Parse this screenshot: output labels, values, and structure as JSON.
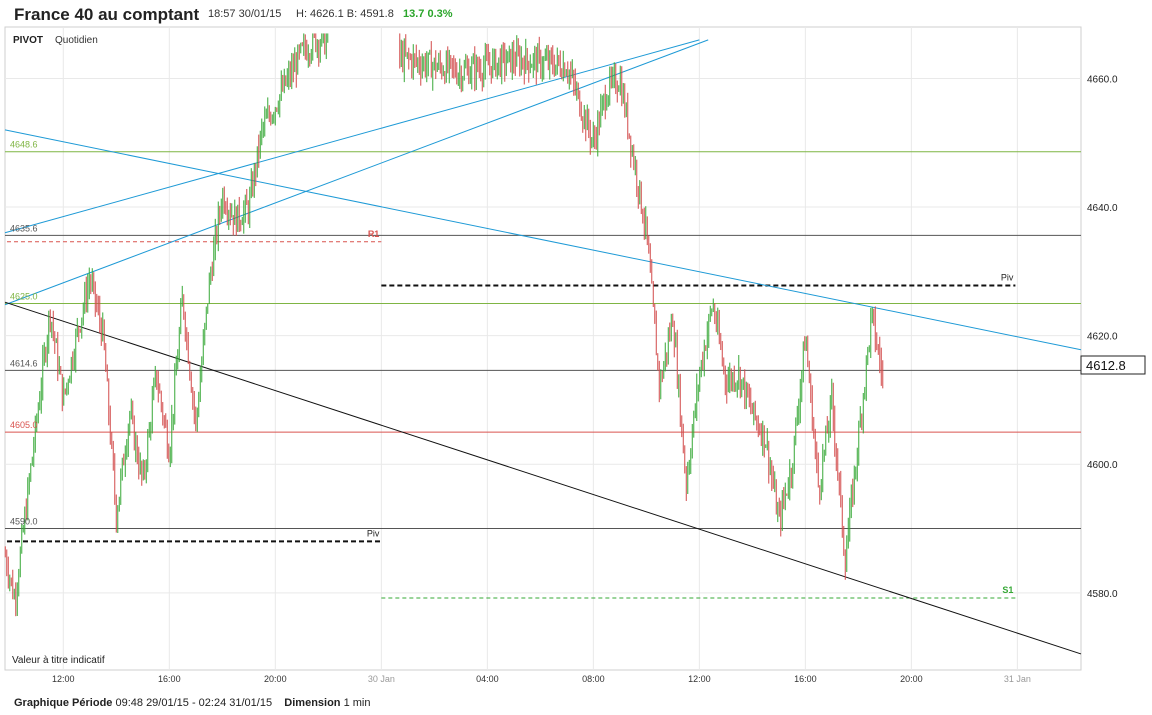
{
  "header": {
    "title": "France 40 au comptant",
    "datetime": "18:57 30/01/15",
    "hb": "H: 4626.1  B: 4591.8",
    "change": "13.7  0.3%"
  },
  "panel": {
    "indicator": "PIVOT",
    "period": "Quotidien",
    "disclaimer": "Valeur à titre indicatif"
  },
  "footer": {
    "period_label": "Graphique Période",
    "period_value": "09:48 29/01/15 - 02:24 31/01/15",
    "dimension_label": "Dimension",
    "dimension_value": "1 min"
  },
  "colors": {
    "up": "#36a836",
    "down": "#d24a4a",
    "trend_blue": "#1e9ad6",
    "green_level": "#7fb543",
    "red_level": "#d9534f",
    "grey_level": "#555555"
  },
  "chart_data": {
    "type": "candlestick",
    "x_tick_labels": [
      "12:00",
      "16:00",
      "20:00",
      "30 Jan",
      "04:00",
      "08:00",
      "12:00",
      "16:00",
      "20:00",
      "31 Jan"
    ],
    "y_tick_labels": [
      "4580.0",
      "4600.0",
      "4620.0",
      "4640.0",
      "4660.0"
    ],
    "ylim": [
      4568,
      4668
    ],
    "last_price": "4612.8",
    "levels": [
      {
        "label": "4648.6",
        "value": 4648.6,
        "color": "green",
        "style": "solid"
      },
      {
        "label": "4635.6",
        "value": 4635.6,
        "color": "grey",
        "style": "solid"
      },
      {
        "label": "4625.0",
        "value": 4625.0,
        "color": "green",
        "style": "solid"
      },
      {
        "label": "4614.6",
        "value": 4614.6,
        "color": "grey",
        "style": "solid"
      },
      {
        "label": "4605.0",
        "value": 4605.0,
        "color": "red",
        "style": "solid"
      },
      {
        "label": "4590.0",
        "value": 4590.0,
        "color": "grey",
        "style": "solid"
      }
    ],
    "pivot_labels": [
      {
        "label": "R1",
        "value": 4634.6,
        "from": "29/01 09:48",
        "to": "30/01 00:00",
        "color": "red"
      },
      {
        "label": "Piv",
        "value": 4588.0,
        "from": "29/01 09:48",
        "to": "30/01 00:00",
        "color": "black"
      },
      {
        "label": "Piv",
        "value": 4627.8,
        "from": "30/01 00:00",
        "to": "31/01 00:00",
        "color": "black"
      },
      {
        "label": "S1",
        "value": 4579.2,
        "from": "30/01 00:00",
        "to": "31/01 00:00",
        "color": "green"
      }
    ],
    "trendlines": [
      {
        "color": "blue",
        "from": [
          "29/01 09:48",
          4636
        ],
        "to": [
          "30/01 12:00",
          4666
        ]
      },
      {
        "color": "blue",
        "from": [
          "29/01 09:48",
          4624.8
        ],
        "to": [
          "30/01 12:20",
          4666
        ]
      },
      {
        "color": "blue",
        "from": [
          "29/01 09:48",
          4652
        ],
        "to": [
          "31/01 02:24",
          4617.8
        ]
      },
      {
        "color": "black",
        "from": [
          "29/01 09:48",
          4625.2
        ],
        "to": [
          "31/01 02:24",
          4570.5
        ]
      }
    ],
    "series_path": [
      [
        "29/01 09:48",
        4586
      ],
      [
        "29/01 10:10",
        4579
      ],
      [
        "29/01 10:30",
        4590
      ],
      [
        "29/01 11:00",
        4607
      ],
      [
        "29/01 11:30",
        4624
      ],
      [
        "29/01 12:00",
        4610
      ],
      [
        "29/01 12:30",
        4620
      ],
      [
        "29/01 13:00",
        4629
      ],
      [
        "29/01 13:30",
        4620
      ],
      [
        "29/01 14:00",
        4592
      ],
      [
        "29/01 14:30",
        4608
      ],
      [
        "29/01 15:00",
        4597
      ],
      [
        "29/01 15:30",
        4614
      ],
      [
        "29/01 16:00",
        4602
      ],
      [
        "29/01 16:30",
        4626
      ],
      [
        "29/01 17:00",
        4606
      ],
      [
        "29/01 17:30",
        4628
      ],
      [
        "29/01 18:00",
        4642
      ],
      [
        "29/01 18:30",
        4638
      ],
      [
        "29/01 19:00",
        4640
      ],
      [
        "29/01 19:30",
        4652
      ],
      [
        "29/01 20:00",
        4656
      ],
      [
        "29/01 20:30",
        4660
      ],
      [
        "29/01 21:00",
        4664
      ],
      [
        "29/01 21:30",
        4666
      ],
      [
        "30/01 01:00",
        4663
      ],
      [
        "30/01 03:00",
        4661
      ],
      [
        "30/01 05:00",
        4663
      ],
      [
        "30/01 07:00",
        4662
      ],
      [
        "30/01 08:00",
        4650
      ],
      [
        "30/01 08:30",
        4658
      ],
      [
        "30/01 09:00",
        4660
      ],
      [
        "30/01 09:30",
        4648
      ],
      [
        "30/01 10:00",
        4636
      ],
      [
        "30/01 10:30",
        4612
      ],
      [
        "30/01 11:00",
        4623
      ],
      [
        "30/01 11:30",
        4597
      ],
      [
        "30/01 12:00",
        4614
      ],
      [
        "30/01 12:30",
        4625
      ],
      [
        "30/01 13:00",
        4613
      ],
      [
        "30/01 13:30",
        4614
      ],
      [
        "30/01 14:00",
        4608
      ],
      [
        "30/01 14:30",
        4604
      ],
      [
        "30/01 15:00",
        4591
      ],
      [
        "30/01 15:30",
        4600
      ],
      [
        "30/01 16:00",
        4620
      ],
      [
        "30/01 16:30",
        4596
      ],
      [
        "30/01 17:00",
        4610
      ],
      [
        "30/01 17:30",
        4585
      ],
      [
        "30/01 18:00",
        4604
      ],
      [
        "30/01 18:30",
        4623
      ],
      [
        "30/01 18:57",
        4612.8
      ]
    ]
  }
}
